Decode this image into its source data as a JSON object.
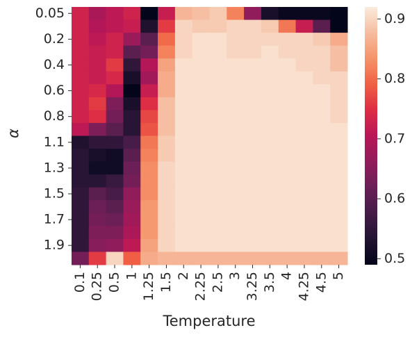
{
  "chart_data": {
    "type": "heatmap",
    "xlabel": "Temperature",
    "ylabel": "α",
    "colormap": "rocket",
    "x": [
      "0.1",
      "0.25",
      "0.5",
      "1",
      "1.25",
      "1.5",
      "2",
      "2.25",
      "2.5",
      "3",
      "3.25",
      "3.5",
      "4",
      "4.25",
      "4.5",
      "5"
    ],
    "y": [
      "0.05",
      null,
      "0.2",
      null,
      "0.4",
      null,
      "0.6",
      null,
      "0.8",
      null,
      "1.1",
      null,
      "1.3",
      null,
      "1.5",
      null,
      "1.7",
      null,
      "1.9",
      null
    ],
    "values": [
      [
        0.73,
        0.69,
        0.71,
        0.73,
        0.49,
        0.72,
        0.87,
        0.88,
        0.89,
        0.82,
        0.66,
        0.52,
        0.5,
        0.5,
        0.5,
        0.49
      ],
      [
        0.73,
        0.7,
        0.71,
        0.72,
        0.53,
        0.76,
        0.9,
        0.89,
        0.89,
        0.9,
        0.9,
        0.89,
        0.81,
        0.72,
        0.6,
        0.49
      ],
      [
        0.73,
        0.71,
        0.73,
        0.67,
        0.6,
        0.8,
        0.9,
        0.91,
        0.91,
        0.9,
        0.9,
        0.9,
        0.9,
        0.9,
        0.89,
        0.86
      ],
      [
        0.73,
        0.72,
        0.73,
        0.6,
        0.63,
        0.82,
        0.9,
        0.91,
        0.91,
        0.9,
        0.9,
        0.91,
        0.9,
        0.9,
        0.9,
        0.88
      ],
      [
        0.73,
        0.72,
        0.76,
        0.55,
        0.7,
        0.85,
        0.91,
        0.91,
        0.91,
        0.91,
        0.91,
        0.91,
        0.91,
        0.9,
        0.9,
        0.88
      ],
      [
        0.73,
        0.72,
        0.74,
        0.52,
        0.68,
        0.86,
        0.91,
        0.91,
        0.91,
        0.91,
        0.91,
        0.91,
        0.91,
        0.91,
        0.9,
        0.9
      ],
      [
        0.73,
        0.74,
        0.7,
        0.49,
        0.72,
        0.86,
        0.91,
        0.91,
        0.91,
        0.91,
        0.91,
        0.91,
        0.91,
        0.91,
        0.91,
        0.9
      ],
      [
        0.73,
        0.76,
        0.64,
        0.52,
        0.75,
        0.88,
        0.91,
        0.91,
        0.91,
        0.91,
        0.91,
        0.91,
        0.91,
        0.91,
        0.91,
        0.9
      ],
      [
        0.73,
        0.75,
        0.63,
        0.54,
        0.77,
        0.88,
        0.91,
        0.91,
        0.91,
        0.91,
        0.91,
        0.91,
        0.91,
        0.91,
        0.91,
        0.9
      ],
      [
        0.71,
        0.64,
        0.6,
        0.54,
        0.78,
        0.88,
        0.91,
        0.91,
        0.91,
        0.91,
        0.91,
        0.91,
        0.91,
        0.91,
        0.91,
        0.91
      ],
      [
        0.53,
        0.55,
        0.55,
        0.58,
        0.81,
        0.89,
        0.91,
        0.91,
        0.91,
        0.91,
        0.91,
        0.91,
        0.91,
        0.91,
        0.91,
        0.91
      ],
      [
        0.54,
        0.52,
        0.51,
        0.6,
        0.82,
        0.89,
        0.91,
        0.91,
        0.91,
        0.91,
        0.91,
        0.91,
        0.91,
        0.91,
        0.91,
        0.91
      ],
      [
        0.54,
        0.51,
        0.51,
        0.62,
        0.83,
        0.9,
        0.91,
        0.91,
        0.91,
        0.91,
        0.91,
        0.91,
        0.91,
        0.91,
        0.91,
        0.91
      ],
      [
        0.54,
        0.54,
        0.56,
        0.63,
        0.83,
        0.9,
        0.91,
        0.91,
        0.91,
        0.91,
        0.91,
        0.91,
        0.91,
        0.91,
        0.91,
        0.91
      ],
      [
        0.55,
        0.6,
        0.58,
        0.66,
        0.83,
        0.9,
        0.91,
        0.91,
        0.91,
        0.91,
        0.91,
        0.91,
        0.91,
        0.91,
        0.91,
        0.91
      ],
      [
        0.55,
        0.62,
        0.6,
        0.67,
        0.84,
        0.9,
        0.91,
        0.91,
        0.91,
        0.91,
        0.91,
        0.91,
        0.91,
        0.91,
        0.91,
        0.91
      ],
      [
        0.55,
        0.63,
        0.62,
        0.68,
        0.84,
        0.9,
        0.91,
        0.91,
        0.91,
        0.91,
        0.91,
        0.91,
        0.91,
        0.91,
        0.91,
        0.91
      ],
      [
        0.55,
        0.64,
        0.64,
        0.69,
        0.84,
        0.9,
        0.91,
        0.91,
        0.91,
        0.91,
        0.91,
        0.91,
        0.91,
        0.91,
        0.91,
        0.91
      ],
      [
        0.55,
        0.65,
        0.66,
        0.71,
        0.85,
        0.9,
        0.91,
        0.91,
        0.91,
        0.91,
        0.91,
        0.91,
        0.91,
        0.91,
        0.91,
        0.91
      ],
      [
        0.63,
        0.76,
        0.9,
        0.79,
        0.86,
        0.87,
        0.87,
        0.87,
        0.87,
        0.87,
        0.87,
        0.87,
        0.87,
        0.87,
        0.87,
        0.87
      ]
    ],
    "clim": [
      0.49,
      0.92
    ],
    "cticks": [
      0.5,
      0.6,
      0.7,
      0.8,
      0.9
    ]
  }
}
